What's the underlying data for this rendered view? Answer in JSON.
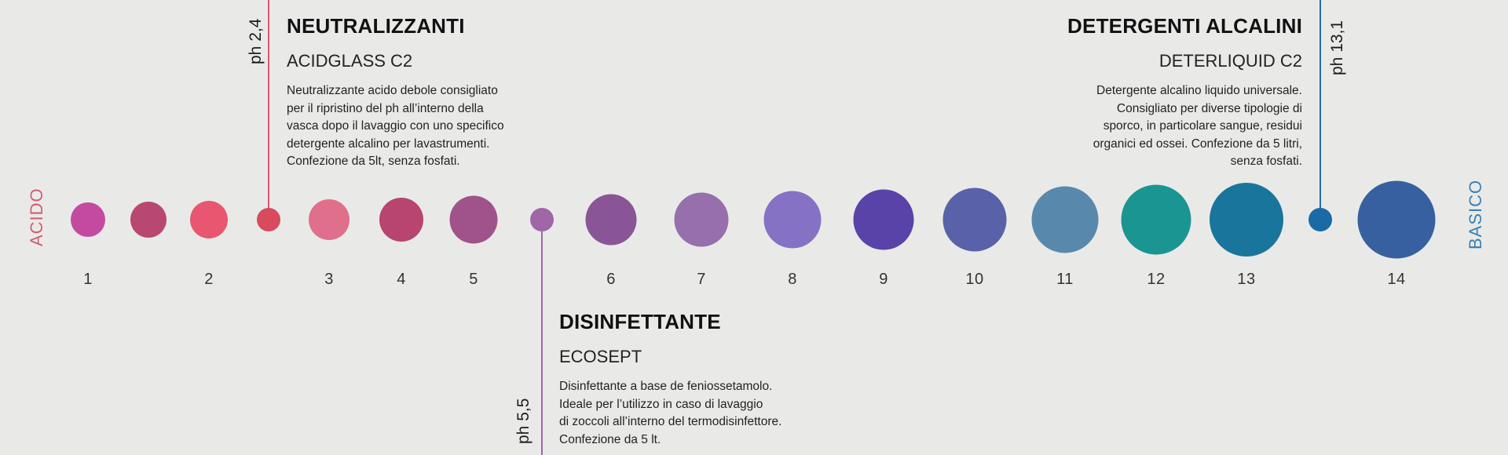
{
  "scale": {
    "left_label": "ACIDO",
    "right_label": "BASICO",
    "left_color": "#d25c6e",
    "right_color": "#3a7fb4",
    "numbers": [
      "1",
      "2",
      "3",
      "4",
      "5",
      "6",
      "7",
      "8",
      "9",
      "10",
      "11",
      "12",
      "13",
      "14"
    ],
    "circle_colors": [
      "#c44aa0",
      "#b84771",
      "#e8566f",
      "#e06f8b",
      "#b84470",
      "#a0528b",
      "#8a5596",
      "#966fac",
      "#8572c4",
      "#5a43a8",
      "#5962a8",
      "#5889ac",
      "#1a9592",
      "#1a759c",
      "#3660a0"
    ]
  },
  "markers": [
    {
      "ph": "ph 2,4",
      "title": "NEUTRALIZZANTI",
      "product": "ACIDGLASS C2",
      "description": [
        "Neutralizzante acido debole consigliato",
        "per il ripristino del ph all’interno della",
        "vasca dopo il lavaggio con uno specifico",
        "detergente alcalino per lavastrumenti.",
        "Confezione da 5lt, senza fosfati."
      ],
      "color": "#e0566a"
    },
    {
      "ph": "ph 5,5",
      "title": "DISINFETTANTE",
      "product": "ECOSEPT",
      "description": [
        "Disinfettante a base de feniossetamolo.",
        "Ideale per l’utilizzo in caso di lavaggio",
        "di zoccoli all’interno del termodisinfettore.",
        "Confezione da 5 lt."
      ],
      "color": "#a066a8"
    },
    {
      "ph": "ph 13,1",
      "title": "DETERGENTI ALCALINI",
      "product": "DETERLIQUID C2",
      "description": [
        "Detergente alcalino liquido universale.",
        "Consigliato per diverse tipologie di",
        "sporco, in particolare sangue, residui",
        "organici ed ossei. Confezione da 5 litri,",
        "senza fosfati."
      ],
      "color": "#1f6fa8"
    }
  ]
}
